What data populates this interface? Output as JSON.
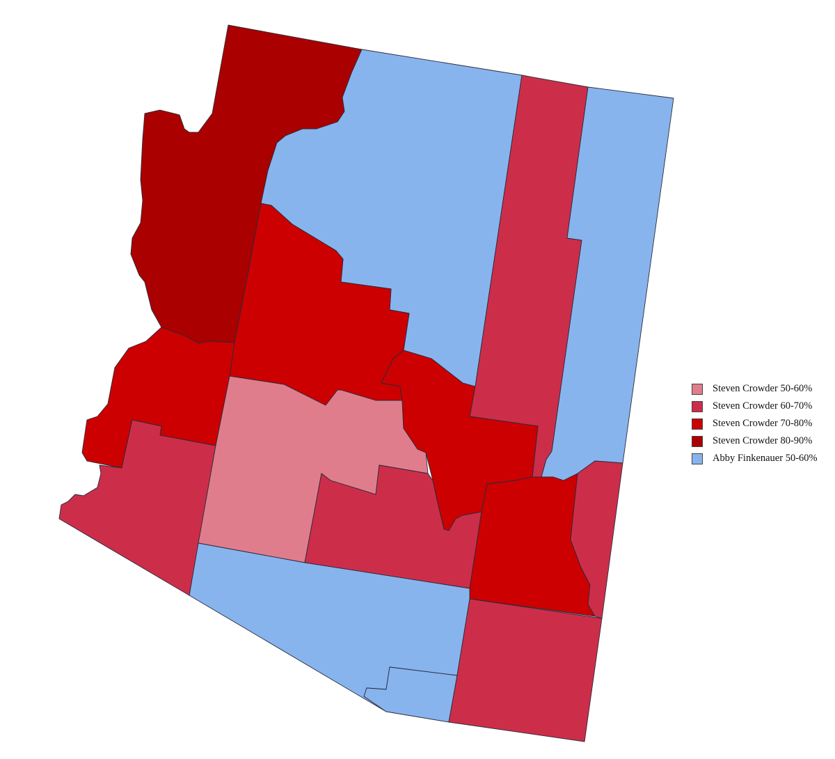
{
  "legend": {
    "items": [
      {
        "label": "Steven Crowder 50-60%",
        "color": "#e07d8c"
      },
      {
        "label": "Steven Crowder 60-70%",
        "color": "#cc2e4a"
      },
      {
        "label": "Steven Crowder 70-80%",
        "color": "#cc0000"
      },
      {
        "label": "Steven Crowder 80-90%",
        "color": "#aa0000"
      },
      {
        "label": "Abby Finkenauer 50-60%",
        "color": "#88b4ee"
      }
    ]
  }
}
